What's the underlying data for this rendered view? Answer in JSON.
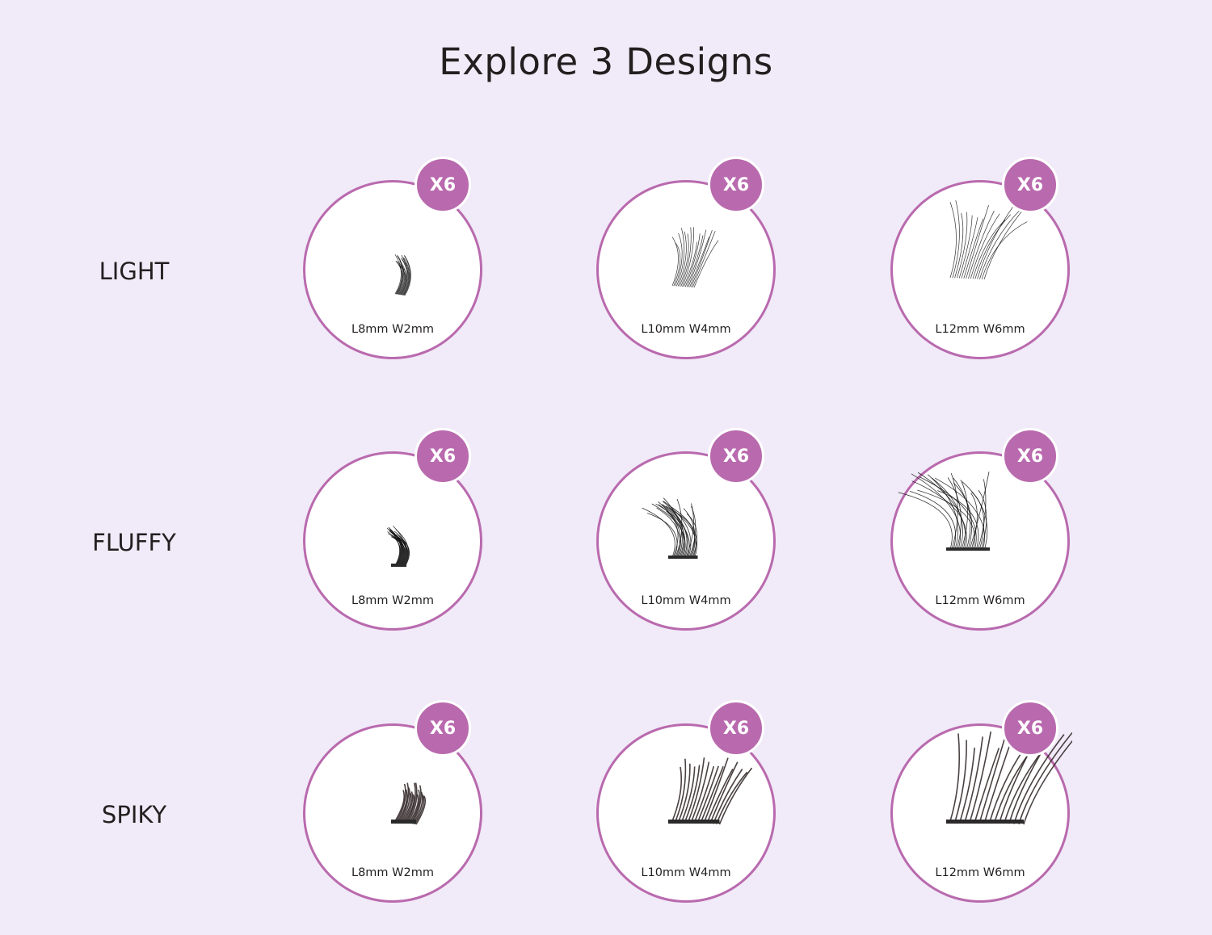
{
  "title": "Explore 3 Designs",
  "accent_color": "#b96aae",
  "background_color": "#f1eaf8",
  "rows": [
    {
      "label": "LIGHT",
      "items": [
        {
          "badge": "X6",
          "size": "L8mm W2mm"
        },
        {
          "badge": "X6",
          "size": "L10mm W4mm"
        },
        {
          "badge": "X6",
          "size": "L12mm W6mm"
        }
      ]
    },
    {
      "label": "FLUFFY",
      "items": [
        {
          "badge": "X6",
          "size": "L8mm W2mm"
        },
        {
          "badge": "X6",
          "size": "L10mm W4mm"
        },
        {
          "badge": "X6",
          "size": "L12mm W6mm"
        }
      ]
    },
    {
      "label": "SPIKY",
      "items": [
        {
          "badge": "X6",
          "size": "L8mm W2mm"
        },
        {
          "badge": "X6",
          "size": "L10mm W4mm"
        },
        {
          "badge": "X6",
          "size": "L12mm W6mm"
        }
      ]
    }
  ]
}
